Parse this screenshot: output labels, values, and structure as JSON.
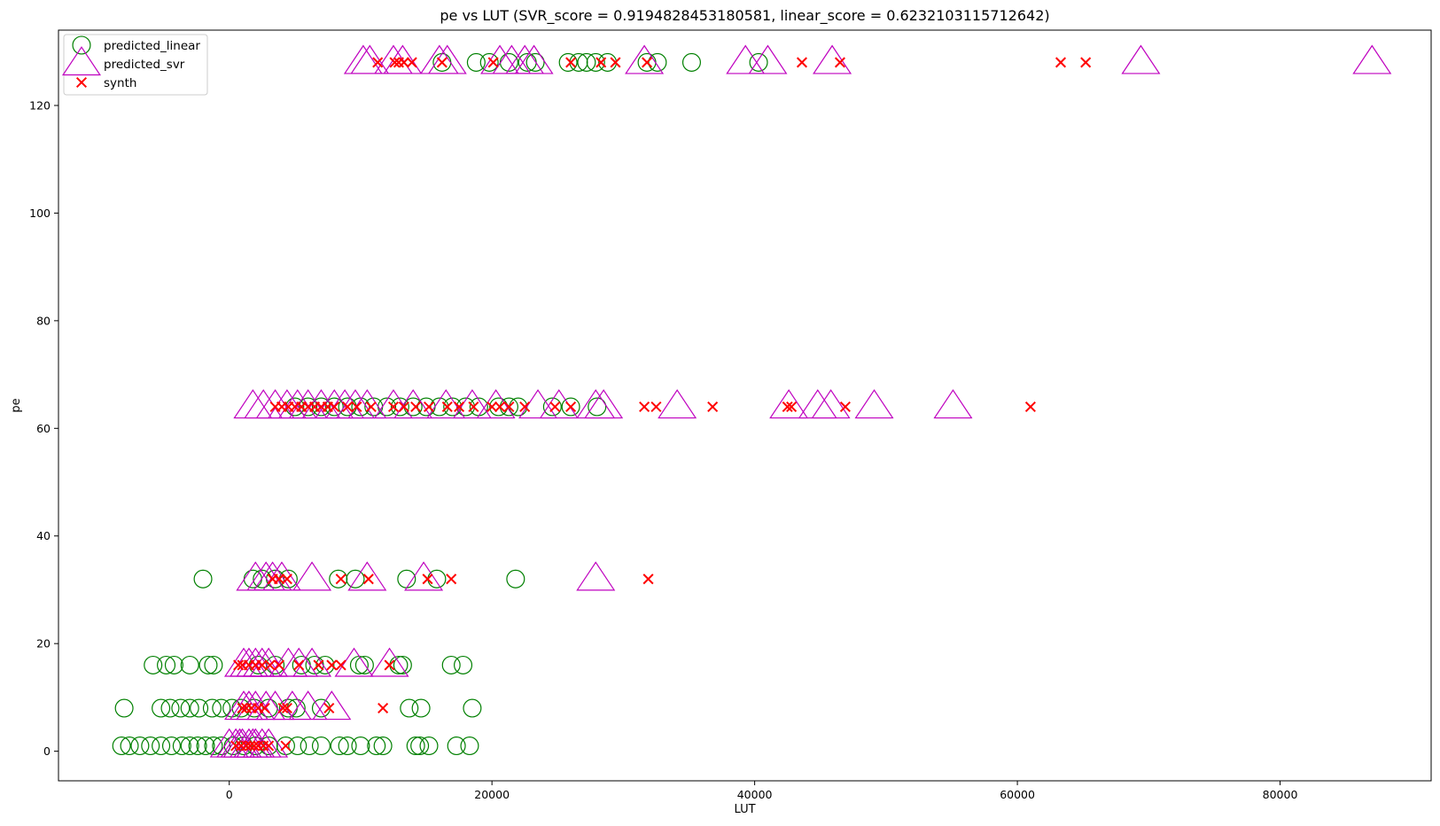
{
  "chart_data": {
    "type": "scatter",
    "title": "pe vs LUT (SVR_score = 0.9194828453180581, linear_score = 0.6232103115712642)",
    "xlabel": "LUT",
    "ylabel": "pe",
    "xlim": [
      -13000,
      91500
    ],
    "ylim": [
      -5.5,
      134
    ],
    "xticks": [
      0,
      20000,
      40000,
      60000,
      80000
    ],
    "yticks": [
      0,
      20,
      40,
      60,
      80,
      100,
      120
    ],
    "grid": false,
    "legend_position": "top-left",
    "series": [
      {
        "name": "predicted_linear",
        "marker": "circle",
        "color": "#008000",
        "points": [
          [
            -8200,
            1
          ],
          [
            -7600,
            1
          ],
          [
            -6800,
            1
          ],
          [
            -6000,
            1
          ],
          [
            -5200,
            1
          ],
          [
            -4400,
            1
          ],
          [
            -3600,
            1
          ],
          [
            -3000,
            1
          ],
          [
            -2400,
            1
          ],
          [
            -1800,
            1
          ],
          [
            -1200,
            1
          ],
          [
            -600,
            1
          ],
          [
            300,
            1
          ],
          [
            1100,
            1
          ],
          [
            2000,
            1
          ],
          [
            3000,
            1
          ],
          [
            4300,
            1
          ],
          [
            5200,
            1
          ],
          [
            6100,
            1
          ],
          [
            7000,
            1
          ],
          [
            8400,
            1
          ],
          [
            9000,
            1
          ],
          [
            10000,
            1
          ],
          [
            11200,
            1
          ],
          [
            11700,
            1
          ],
          [
            14200,
            1
          ],
          [
            14500,
            1
          ],
          [
            15200,
            1
          ],
          [
            17300,
            1
          ],
          [
            18300,
            1
          ],
          [
            -8000,
            8
          ],
          [
            -5200,
            8
          ],
          [
            -4500,
            8
          ],
          [
            -3700,
            8
          ],
          [
            -3000,
            8
          ],
          [
            -2300,
            8
          ],
          [
            -1300,
            8
          ],
          [
            -600,
            8
          ],
          [
            200,
            8
          ],
          [
            900,
            8
          ],
          [
            1900,
            8
          ],
          [
            3000,
            8
          ],
          [
            4500,
            8
          ],
          [
            5100,
            8
          ],
          [
            7000,
            8
          ],
          [
            13700,
            8
          ],
          [
            14600,
            8
          ],
          [
            18500,
            8
          ],
          [
            -5800,
            16
          ],
          [
            -4800,
            16
          ],
          [
            -4200,
            16
          ],
          [
            -3000,
            16
          ],
          [
            -1600,
            16
          ],
          [
            -1200,
            16
          ],
          [
            2200,
            16
          ],
          [
            3500,
            16
          ],
          [
            5500,
            16
          ],
          [
            6500,
            16
          ],
          [
            7300,
            16
          ],
          [
            9900,
            16
          ],
          [
            10300,
            16
          ],
          [
            12900,
            16
          ],
          [
            13200,
            16
          ],
          [
            16900,
            16
          ],
          [
            17800,
            16
          ],
          [
            -2000,
            32
          ],
          [
            1800,
            32
          ],
          [
            2500,
            32
          ],
          [
            3500,
            32
          ],
          [
            4500,
            32
          ],
          [
            8300,
            32
          ],
          [
            9600,
            32
          ],
          [
            13500,
            32
          ],
          [
            15800,
            32
          ],
          [
            21800,
            32
          ],
          [
            5000,
            64
          ],
          [
            6000,
            64
          ],
          [
            7000,
            64
          ],
          [
            8000,
            64
          ],
          [
            9000,
            64
          ],
          [
            10000,
            64
          ],
          [
            11000,
            64
          ],
          [
            12000,
            64
          ],
          [
            13000,
            64
          ],
          [
            14000,
            64
          ],
          [
            15000,
            64
          ],
          [
            16000,
            64
          ],
          [
            17000,
            64
          ],
          [
            18000,
            64
          ],
          [
            19000,
            64
          ],
          [
            20500,
            64
          ],
          [
            21300,
            64
          ],
          [
            22000,
            64
          ],
          [
            24600,
            64
          ],
          [
            26000,
            64
          ],
          [
            28000,
            64
          ],
          [
            16200,
            128
          ],
          [
            18800,
            128
          ],
          [
            19800,
            128
          ],
          [
            21300,
            128
          ],
          [
            22700,
            128
          ],
          [
            23300,
            128
          ],
          [
            25800,
            128
          ],
          [
            26600,
            128
          ],
          [
            27200,
            128
          ],
          [
            27900,
            128
          ],
          [
            28800,
            128
          ],
          [
            31800,
            128
          ],
          [
            32600,
            128
          ],
          [
            35200,
            128
          ],
          [
            40300,
            128
          ]
        ]
      },
      {
        "name": "predicted_svr",
        "marker": "triangle",
        "color": "#bf00bf",
        "points": [
          [
            0,
            1
          ],
          [
            500,
            1
          ],
          [
            1000,
            1
          ],
          [
            1500,
            1
          ],
          [
            2000,
            1
          ],
          [
            2500,
            1
          ],
          [
            3000,
            1
          ],
          [
            800,
            1
          ],
          [
            1800,
            1
          ],
          [
            1100,
            8
          ],
          [
            1500,
            8
          ],
          [
            2000,
            8
          ],
          [
            2800,
            8
          ],
          [
            3500,
            8
          ],
          [
            4800,
            8
          ],
          [
            6000,
            8
          ],
          [
            7800,
            8
          ],
          [
            1100,
            16
          ],
          [
            1500,
            16
          ],
          [
            2000,
            16
          ],
          [
            2500,
            16
          ],
          [
            3000,
            16
          ],
          [
            4500,
            16
          ],
          [
            5300,
            16
          ],
          [
            6300,
            16
          ],
          [
            9500,
            16
          ],
          [
            12200,
            16
          ],
          [
            2000,
            32
          ],
          [
            2800,
            32
          ],
          [
            3300,
            32
          ],
          [
            4000,
            32
          ],
          [
            6300,
            32
          ],
          [
            10500,
            32
          ],
          [
            14800,
            32
          ],
          [
            27900,
            32
          ],
          [
            1800,
            64
          ],
          [
            2600,
            64
          ],
          [
            3500,
            64
          ],
          [
            4400,
            64
          ],
          [
            5200,
            64
          ],
          [
            6000,
            64
          ],
          [
            7000,
            64
          ],
          [
            8000,
            64
          ],
          [
            8800,
            64
          ],
          [
            9600,
            64
          ],
          [
            10500,
            64
          ],
          [
            12500,
            64
          ],
          [
            14000,
            64
          ],
          [
            16500,
            64
          ],
          [
            18500,
            64
          ],
          [
            20300,
            64
          ],
          [
            23500,
            64
          ],
          [
            25100,
            64
          ],
          [
            27900,
            64
          ],
          [
            28500,
            64
          ],
          [
            34100,
            64
          ],
          [
            42600,
            64
          ],
          [
            44800,
            64
          ],
          [
            45800,
            64
          ],
          [
            49100,
            64
          ],
          [
            55100,
            64
          ],
          [
            10200,
            128
          ],
          [
            10700,
            128
          ],
          [
            12500,
            128
          ],
          [
            13200,
            128
          ],
          [
            16000,
            128
          ],
          [
            16600,
            128
          ],
          [
            20600,
            128
          ],
          [
            21500,
            128
          ],
          [
            22500,
            128
          ],
          [
            23200,
            128
          ],
          [
            31600,
            128
          ],
          [
            39300,
            128
          ],
          [
            41000,
            128
          ],
          [
            45900,
            128
          ],
          [
            69400,
            128
          ],
          [
            87000,
            128
          ]
        ]
      },
      {
        "name": "synth",
        "marker": "x",
        "color": "#ff0000",
        "points": [
          [
            500,
            1
          ],
          [
            900,
            1
          ],
          [
            1300,
            1
          ],
          [
            1600,
            1
          ],
          [
            1900,
            1
          ],
          [
            2200,
            1
          ],
          [
            2600,
            1
          ],
          [
            3000,
            1
          ],
          [
            4300,
            1
          ],
          [
            1000,
            8
          ],
          [
            1300,
            8
          ],
          [
            1700,
            8
          ],
          [
            2200,
            8
          ],
          [
            2700,
            8
          ],
          [
            4100,
            8
          ],
          [
            4400,
            8
          ],
          [
            7600,
            8
          ],
          [
            11700,
            8
          ],
          [
            700,
            16
          ],
          [
            1000,
            16
          ],
          [
            1500,
            16
          ],
          [
            2000,
            16
          ],
          [
            2500,
            16
          ],
          [
            3100,
            16
          ],
          [
            3800,
            16
          ],
          [
            5300,
            16
          ],
          [
            6800,
            16
          ],
          [
            7800,
            16
          ],
          [
            8500,
            16
          ],
          [
            12200,
            16
          ],
          [
            3300,
            32
          ],
          [
            3800,
            32
          ],
          [
            4400,
            32
          ],
          [
            8500,
            32
          ],
          [
            10600,
            32
          ],
          [
            15100,
            32
          ],
          [
            16900,
            32
          ],
          [
            31900,
            32
          ],
          [
            3500,
            64
          ],
          [
            4000,
            64
          ],
          [
            4500,
            64
          ],
          [
            5000,
            64
          ],
          [
            5500,
            64
          ],
          [
            6000,
            64
          ],
          [
            6500,
            64
          ],
          [
            7000,
            64
          ],
          [
            7500,
            64
          ],
          [
            8000,
            64
          ],
          [
            9000,
            64
          ],
          [
            9700,
            64
          ],
          [
            10800,
            64
          ],
          [
            12500,
            64
          ],
          [
            13300,
            64
          ],
          [
            14200,
            64
          ],
          [
            15200,
            64
          ],
          [
            16600,
            64
          ],
          [
            17500,
            64
          ],
          [
            18600,
            64
          ],
          [
            20000,
            64
          ],
          [
            20600,
            64
          ],
          [
            21300,
            64
          ],
          [
            22500,
            64
          ],
          [
            24800,
            64
          ],
          [
            26000,
            64
          ],
          [
            31600,
            64
          ],
          [
            32500,
            64
          ],
          [
            36800,
            64
          ],
          [
            42500,
            64
          ],
          [
            42800,
            64
          ],
          [
            46900,
            64
          ],
          [
            61000,
            64
          ],
          [
            11300,
            128
          ],
          [
            12600,
            128
          ],
          [
            12900,
            128
          ],
          [
            13300,
            128
          ],
          [
            13900,
            128
          ],
          [
            16200,
            128
          ],
          [
            20100,
            128
          ],
          [
            26000,
            128
          ],
          [
            28300,
            128
          ],
          [
            29400,
            128
          ],
          [
            31800,
            128
          ],
          [
            43600,
            128
          ],
          [
            46500,
            128
          ],
          [
            63300,
            128
          ],
          [
            65200,
            128
          ]
        ]
      }
    ]
  }
}
